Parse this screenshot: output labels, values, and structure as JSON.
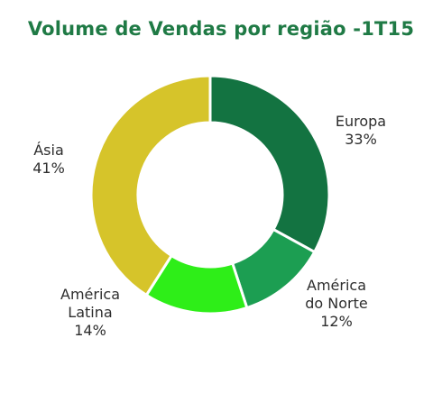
{
  "colors": {
    "title": "#1f7a45",
    "background": "#ffffff"
  },
  "chart_data": {
    "type": "pie",
    "donut": true,
    "title": "Volume de Vendas por região -1T15",
    "slices": [
      {
        "label_lines": [
          "Europa"
        ],
        "name": "Europa",
        "value": 33,
        "value_label": "33%",
        "color": "#137341"
      },
      {
        "label_lines": [
          "América",
          "do Norte"
        ],
        "name": "América do Norte",
        "value": 12,
        "value_label": "12%",
        "color": "#1c9e52"
      },
      {
        "label_lines": [
          "América",
          "Latina"
        ],
        "name": "América Latina",
        "value": 14,
        "value_label": "14%",
        "color": "#2eee18"
      },
      {
        "label_lines": [
          "Ásia"
        ],
        "name": "Ásia",
        "value": 41,
        "value_label": "41%",
        "color": "#d6c42a"
      }
    ]
  }
}
